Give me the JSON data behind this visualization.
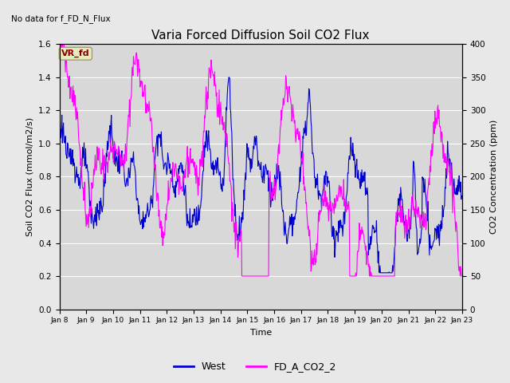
{
  "title": "Varia Forced Diffusion Soil CO2 Flux",
  "no_data_text": "No data for f_FD_N_Flux",
  "vr_label": "VR_fd",
  "xlabel": "Time",
  "ylabel_left": "Soil CO2 Flux (mmol/m2/s)",
  "ylabel_right": "CO2 Concentration (ppm)",
  "ylim_left": [
    0.0,
    1.6
  ],
  "ylim_right": [
    0,
    400
  ],
  "yticks_left": [
    0.0,
    0.2,
    0.4,
    0.6,
    0.8,
    1.0,
    1.2,
    1.4,
    1.6
  ],
  "yticks_right": [
    0,
    50,
    100,
    150,
    200,
    250,
    300,
    350,
    400
  ],
  "legend_labels": [
    "West",
    "FD_A_CO2_2"
  ],
  "line_colors": [
    "#0000cc",
    "#ff00ff"
  ],
  "background_color": "#d8d8d8",
  "fig_background": "#e8e8e8",
  "vr_box_facecolor": "#e8e8c0",
  "vr_box_edgecolor": "#a0a060",
  "vr_text_color": "#880000",
  "title_fontsize": 11,
  "label_fontsize": 8,
  "tick_fontsize": 7.5
}
